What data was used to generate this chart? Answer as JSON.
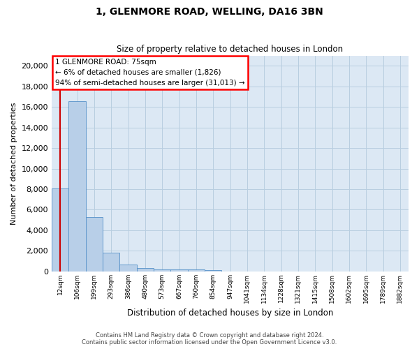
{
  "title1": "1, GLENMORE ROAD, WELLING, DA16 3BN",
  "title2": "Size of property relative to detached houses in London",
  "xlabel": "Distribution of detached houses by size in London",
  "ylabel": "Number of detached properties",
  "footer1": "Contains HM Land Registry data © Crown copyright and database right 2024.",
  "footer2": "Contains public sector information licensed under the Open Government Licence v3.0.",
  "annotation_line1": "1 GLENMORE ROAD: 75sqm",
  "annotation_line2": "← 6% of detached houses are smaller (1,826)",
  "annotation_line3": "94% of semi-detached houses are larger (31,013) →",
  "bar_color": "#b8cfe8",
  "bar_edge_color": "#5590c8",
  "marker_color": "#cc0000",
  "marker_bin_index": 0,
  "bin_labels": [
    "12sqm",
    "106sqm",
    "199sqm",
    "293sqm",
    "386sqm",
    "480sqm",
    "573sqm",
    "667sqm",
    "760sqm",
    "854sqm",
    "947sqm",
    "1041sqm",
    "1134sqm",
    "1228sqm",
    "1321sqm",
    "1415sqm",
    "1508sqm",
    "1602sqm",
    "1695sqm",
    "1789sqm",
    "1882sqm"
  ],
  "bar_heights": [
    8050,
    16550,
    5300,
    1820,
    650,
    310,
    220,
    175,
    155,
    110,
    0,
    0,
    0,
    0,
    0,
    0,
    0,
    0,
    0,
    0,
    0
  ],
  "ylim": [
    0,
    21000
  ],
  "yticks": [
    0,
    2000,
    4000,
    6000,
    8000,
    10000,
    12000,
    14000,
    16000,
    18000,
    20000
  ],
  "background_color": "#ffffff",
  "plot_bg_color": "#dce8f4",
  "grid_color": "#b8cee0"
}
